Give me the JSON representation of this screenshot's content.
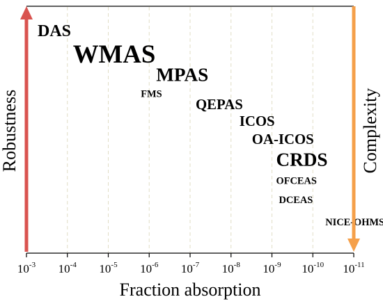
{
  "chart_data": {
    "type": "scatter",
    "title": "",
    "xlabel": "Fraction absorption",
    "ylabel_left": "Robustness",
    "ylabel_right": "Complexity",
    "x_scale": "log",
    "x_ticks": [
      {
        "base": "10",
        "exp": "-3"
      },
      {
        "base": "10",
        "exp": "-4"
      },
      {
        "base": "10",
        "exp": "-5"
      },
      {
        "base": "10",
        "exp": "-6"
      },
      {
        "base": "10",
        "exp": "-7"
      },
      {
        "base": "10",
        "exp": "-8"
      },
      {
        "base": "10",
        "exp": "-9"
      },
      {
        "base": "10",
        "exp": "-10"
      },
      {
        "base": "10",
        "exp": "-11"
      }
    ],
    "xlim": [
      0.001,
      1e-11
    ],
    "grid": "vertical-dashed",
    "colors": {
      "robustness_arrow": "#d9534f",
      "complexity_arrow": "#f5a04a",
      "grid": "#e0ddc6"
    },
    "techniques": [
      {
        "label": "DAS",
        "fraction_absorption": 0.001,
        "weight": 5
      },
      {
        "label": "WMAS",
        "fraction_absorption": 0.0001,
        "weight": 9
      },
      {
        "label": "MPAS",
        "fraction_absorption": 1e-06,
        "weight": 6
      },
      {
        "label": "FMS",
        "fraction_absorption": 1e-06,
        "weight": 2
      },
      {
        "label": "QEPAS",
        "fraction_absorption": 1e-07,
        "weight": 4
      },
      {
        "label": "ICOS",
        "fraction_absorption": 1e-08,
        "weight": 4
      },
      {
        "label": "OA-ICOS",
        "fraction_absorption": 1e-08,
        "weight": 4
      },
      {
        "label": "CRDS",
        "fraction_absorption": 1e-09,
        "weight": 6
      },
      {
        "label": "OFCEAS",
        "fraction_absorption": 1e-09,
        "weight": 2
      },
      {
        "label": "DCEAS",
        "fraction_absorption": 1e-09,
        "weight": 2
      },
      {
        "label": "NICE-OHMS",
        "fraction_absorption": 1e-10,
        "weight": 2
      }
    ]
  }
}
